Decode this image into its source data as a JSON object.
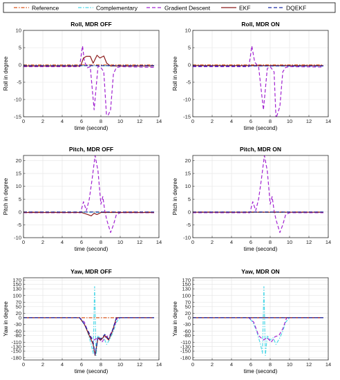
{
  "legend": {
    "position": "top",
    "entries": [
      {
        "label": "Reference",
        "color": "#d95319",
        "dash": "dash-dot"
      },
      {
        "label": "Complementary",
        "color": "#4dd8e8",
        "dash": "dash-dot"
      },
      {
        "label": "Gradient Descent",
        "color": "#a020d0",
        "dash": "dash"
      },
      {
        "label": "EKF",
        "color": "#8b1a1a",
        "dash": "solid"
      },
      {
        "label": "DQEKF",
        "color": "#1a2aa8",
        "dash": "dash"
      }
    ]
  },
  "chart_data": [
    {
      "type": "line",
      "title": "Roll, MDR OFF",
      "xlabel": "time (second)",
      "ylabel": "Roll in degree",
      "xlim": [
        0,
        14
      ],
      "ylim": [
        -15,
        10
      ],
      "xticks": [
        0,
        2,
        4,
        6,
        8,
        10,
        12,
        14
      ],
      "yticks": [
        -15,
        -10,
        -5,
        0,
        5,
        10
      ],
      "grid": true,
      "series": [
        {
          "name": "Reference",
          "x": [
            0,
            13.5
          ],
          "y": [
            0,
            0
          ]
        },
        {
          "name": "Complementary",
          "x": [
            0,
            3,
            6,
            9,
            13.5
          ],
          "y": [
            -0.3,
            -0.3,
            -0.2,
            -0.3,
            -0.3
          ]
        },
        {
          "name": "Gradient Descent",
          "x": [
            0,
            5.8,
            6.1,
            6.3,
            6.6,
            6.9,
            7.3,
            7.7,
            7.9,
            8.3,
            8.6,
            9.0,
            9.3,
            9.6,
            10,
            13.5
          ],
          "y": [
            -0.5,
            -0.5,
            5.5,
            1.0,
            -0.8,
            -0.5,
            -13,
            -0.5,
            -0.3,
            -2,
            -15.5,
            -13,
            -2.5,
            -0.8,
            -0.5,
            -0.7
          ]
        },
        {
          "name": "EKF",
          "x": [
            0,
            5.9,
            6.2,
            6.5,
            6.9,
            7.2,
            7.6,
            7.9,
            8.3,
            8.6,
            9.0,
            13.5
          ],
          "y": [
            -0.3,
            -0.3,
            2.0,
            2.5,
            2.5,
            0.5,
            2.8,
            2.0,
            2.6,
            0.5,
            -0.3,
            -0.3
          ]
        },
        {
          "name": "DQEKF",
          "x": [
            0,
            6,
            9,
            13.5
          ],
          "y": [
            -0.2,
            -0.2,
            -0.2,
            -0.2
          ]
        }
      ]
    },
    {
      "type": "line",
      "title": "Roll, MDR ON",
      "xlabel": "time (second)",
      "ylabel": "Roll in degree",
      "xlim": [
        0,
        14
      ],
      "ylim": [
        -15,
        10
      ],
      "xticks": [
        0,
        2,
        4,
        6,
        8,
        10,
        12,
        14
      ],
      "yticks": [
        -15,
        -10,
        -5,
        0,
        5,
        10
      ],
      "grid": true,
      "series": [
        {
          "name": "Reference",
          "x": [
            0,
            13.5
          ],
          "y": [
            0,
            0
          ]
        },
        {
          "name": "Complementary",
          "x": [
            0,
            6,
            9,
            13.5
          ],
          "y": [
            -0.3,
            -0.2,
            -0.3,
            -0.3
          ]
        },
        {
          "name": "Gradient Descent",
          "x": [
            0,
            5.8,
            6.1,
            6.4,
            6.8,
            7.3,
            7.7,
            8.0,
            8.4,
            8.6,
            9.0,
            9.3,
            9.6,
            10,
            13.5
          ],
          "y": [
            -0.5,
            -0.5,
            5.5,
            0.8,
            -0.5,
            -13,
            -1.0,
            -0.5,
            -2.0,
            -15.5,
            -12,
            -2.0,
            -0.7,
            -0.5,
            -0.6
          ]
        },
        {
          "name": "EKF",
          "x": [
            0,
            13.5
          ],
          "y": [
            -0.2,
            -0.2
          ]
        },
        {
          "name": "DQEKF",
          "x": [
            0,
            13.5
          ],
          "y": [
            -0.3,
            -0.3
          ]
        }
      ]
    },
    {
      "type": "line",
      "title": "Pitch, MDR OFF",
      "xlabel": "time (second)",
      "ylabel": "Pitch in degree",
      "xlim": [
        0,
        14
      ],
      "ylim": [
        -10,
        22
      ],
      "xticks": [
        0,
        2,
        4,
        6,
        8,
        10,
        12,
        14
      ],
      "yticks": [
        -10,
        -5,
        0,
        5,
        10,
        15,
        20
      ],
      "grid": true,
      "series": [
        {
          "name": "Reference",
          "x": [
            0,
            13.5
          ],
          "y": [
            0,
            0
          ]
        },
        {
          "name": "Complementary",
          "x": [
            0,
            6,
            9,
            13.5
          ],
          "y": [
            -0.2,
            -0.1,
            -0.2,
            -0.2
          ]
        },
        {
          "name": "Gradient Descent",
          "x": [
            0,
            5.9,
            6.2,
            6.5,
            6.8,
            7.1,
            7.4,
            7.7,
            8.0,
            8.2,
            8.4,
            8.6,
            9.0,
            9.3,
            9.6,
            10,
            13.5
          ],
          "y": [
            -0.3,
            -0.3,
            4,
            0.5,
            5,
            13,
            22,
            16,
            3,
            6,
            0.5,
            -3,
            -8,
            -5,
            -1,
            -0.3,
            -0.3
          ]
        },
        {
          "name": "EKF",
          "x": [
            0,
            6,
            6.5,
            7.0,
            7.3,
            7.6,
            8.0,
            13.5
          ],
          "y": [
            -0.2,
            -0.2,
            -0.8,
            -1.5,
            -0.5,
            -1.0,
            -0.2,
            -0.2
          ]
        },
        {
          "name": "DQEKF",
          "x": [
            0,
            13.5
          ],
          "y": [
            0,
            0
          ]
        }
      ]
    },
    {
      "type": "line",
      "title": "Pitch, MDR ON",
      "xlabel": "time (second)",
      "ylabel": "Pitch in degree",
      "xlim": [
        0,
        14
      ],
      "ylim": [
        -10,
        22
      ],
      "xticks": [
        0,
        2,
        4,
        6,
        8,
        10,
        12,
        14
      ],
      "yticks": [
        -10,
        -5,
        0,
        5,
        10,
        15,
        20
      ],
      "grid": true,
      "series": [
        {
          "name": "Reference",
          "x": [
            0,
            13.5
          ],
          "y": [
            0,
            0
          ]
        },
        {
          "name": "Complementary",
          "x": [
            0,
            13.5
          ],
          "y": [
            -0.2,
            -0.2
          ]
        },
        {
          "name": "Gradient Descent",
          "x": [
            0,
            5.9,
            6.2,
            6.5,
            6.8,
            7.1,
            7.4,
            7.7,
            8.0,
            8.2,
            8.4,
            8.6,
            9.0,
            9.3,
            9.6,
            10,
            13.5
          ],
          "y": [
            -0.3,
            -0.3,
            4,
            0.5,
            5,
            13,
            22,
            16,
            3,
            6,
            0.5,
            -3,
            -8,
            -5,
            -1,
            -0.3,
            -0.3
          ]
        },
        {
          "name": "EKF",
          "x": [
            0,
            13.5
          ],
          "y": [
            -0.1,
            -0.1
          ]
        },
        {
          "name": "DQEKF",
          "x": [
            0,
            13.5
          ],
          "y": [
            0,
            0
          ]
        }
      ]
    },
    {
      "type": "line",
      "title": "Yaw, MDR OFF",
      "xlabel": "time (second)",
      "ylabel": "Yaw in degree",
      "xlim": [
        0,
        14
      ],
      "ylim": [
        -190,
        180
      ],
      "xticks": [
        0,
        2,
        4,
        6,
        8,
        10,
        12,
        14
      ],
      "yticks": [
        -180,
        -150,
        -130,
        -110,
        -80,
        -60,
        -30,
        0,
        20,
        50,
        70,
        100,
        130,
        150,
        170
      ],
      "grid": true,
      "series": [
        {
          "name": "Reference",
          "x": [
            0,
            13.5
          ],
          "y": [
            0,
            0
          ]
        },
        {
          "name": "Complementary",
          "x": [
            0,
            5.8,
            6.2,
            6.6,
            7.0,
            7.2,
            7.35,
            7.5,
            7.7,
            8.0,
            8.3,
            8.6,
            9.0,
            9.3,
            9.6,
            10,
            13.5
          ],
          "y": [
            0,
            0,
            -20,
            -60,
            -120,
            -160,
            140,
            -170,
            -80,
            -100,
            -90,
            -120,
            -90,
            -60,
            -20,
            0,
            0
          ]
        },
        {
          "name": "Gradient Descent",
          "x": [
            0,
            5.8,
            6.3,
            6.8,
            7.3,
            7.7,
            8.1,
            8.5,
            8.9,
            9.3,
            9.7,
            13.5
          ],
          "y": [
            0,
            0,
            -20,
            -80,
            -100,
            -90,
            -110,
            -85,
            -80,
            -50,
            0,
            0
          ]
        },
        {
          "name": "EKF",
          "x": [
            0,
            5.8,
            6.3,
            6.8,
            7.2,
            7.4,
            7.7,
            8.0,
            8.4,
            8.8,
            9.2,
            9.6,
            13.5
          ],
          "y": [
            0,
            0,
            -30,
            -80,
            -120,
            -170,
            -90,
            -100,
            -80,
            -100,
            -60,
            0,
            0
          ]
        },
        {
          "name": "DQEKF",
          "x": [
            0,
            5.8,
            6.3,
            6.8,
            7.2,
            7.4,
            7.7,
            8.0,
            8.4,
            8.8,
            9.2,
            9.6,
            13.5
          ],
          "y": [
            0,
            0,
            -30,
            -70,
            -110,
            -165,
            -85,
            -95,
            -75,
            -95,
            -55,
            0,
            0
          ]
        }
      ]
    },
    {
      "type": "line",
      "title": "Yaw, MDR ON",
      "xlabel": "time (second)",
      "ylabel": "Yaw in degree",
      "xlim": [
        0,
        14
      ],
      "ylim": [
        -190,
        180
      ],
      "xticks": [
        0,
        2,
        4,
        6,
        8,
        10,
        12,
        14
      ],
      "yticks": [
        -180,
        -150,
        -130,
        -110,
        -80,
        -60,
        -30,
        0,
        20,
        50,
        70,
        100,
        130,
        150,
        170
      ],
      "grid": true,
      "series": [
        {
          "name": "Reference",
          "x": [
            0,
            13.5
          ],
          "y": [
            0,
            0
          ]
        },
        {
          "name": "Complementary",
          "x": [
            0,
            5.8,
            6.2,
            6.6,
            7.0,
            7.2,
            7.35,
            7.5,
            7.7,
            8.0,
            8.3,
            8.6,
            9.0,
            9.3,
            9.6,
            10,
            13.5
          ],
          "y": [
            0,
            0,
            -20,
            -60,
            -120,
            -160,
            140,
            -170,
            -80,
            -100,
            -90,
            -120,
            -90,
            -60,
            -20,
            0,
            0
          ]
        },
        {
          "name": "Gradient Descent",
          "x": [
            0,
            5.8,
            6.3,
            6.8,
            7.3,
            7.7,
            8.1,
            8.5,
            8.9,
            9.3,
            9.7,
            13.5
          ],
          "y": [
            0,
            0,
            -20,
            -80,
            -100,
            -90,
            -110,
            -85,
            -80,
            -50,
            0,
            0
          ]
        },
        {
          "name": "EKF",
          "x": [
            0,
            13.5
          ],
          "y": [
            0,
            0
          ]
        },
        {
          "name": "DQEKF",
          "x": [
            0,
            13.5
          ],
          "y": [
            0,
            0
          ]
        }
      ]
    }
  ]
}
